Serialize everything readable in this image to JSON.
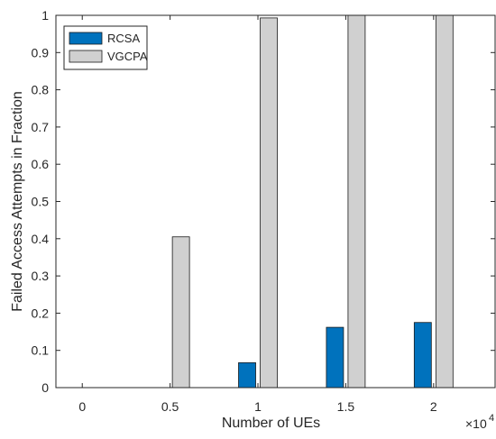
{
  "chart_data": {
    "type": "bar",
    "x": [
      0,
      0.5,
      1,
      1.5,
      2
    ],
    "x_tick_labels": [
      "0",
      "0.5",
      "1",
      "1.5",
      "2"
    ],
    "x_exponent_label": "×10",
    "x_exponent_power": "4",
    "y_tick_labels": [
      "0",
      "0.1",
      "0.2",
      "0.3",
      "0.4",
      "0.5",
      "0.6",
      "0.7",
      "0.8",
      "0.9",
      "1"
    ],
    "series": [
      {
        "name": "RCSA",
        "values": [
          0,
          0,
          0.067,
          0.162,
          0.175
        ],
        "color": "#0072BD"
      },
      {
        "name": "VGCPA",
        "values": [
          0,
          0.405,
          0.993,
          1.0,
          1.0
        ],
        "color": "#D0D0D0"
      }
    ],
    "xlabel": "Number of UEs",
    "ylabel": "Failed Access Attempts in Fraction",
    "xlim": [
      -0.15,
      2.35
    ],
    "ylim": [
      0,
      1
    ],
    "grid": false,
    "legend_position": "top-left"
  }
}
